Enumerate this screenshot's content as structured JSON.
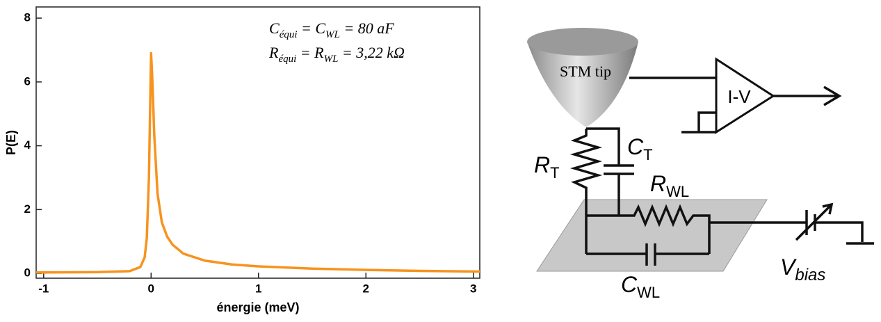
{
  "chart_data": {
    "type": "line",
    "x_label": "énergie (meV)",
    "y_label": "P(E)",
    "annotations": [
      [
        "C",
        "équi",
        " = C",
        "WL",
        " = 80 aF"
      ],
      [
        "R",
        "équi",
        " = R",
        "WL",
        " = 3,22 kΩ"
      ]
    ],
    "x": [
      -1.07,
      -1,
      -0.5,
      -0.2,
      -0.1,
      -0.06,
      -0.04,
      -0.02,
      -0.01,
      0,
      0.01,
      0.03,
      0.06,
      0.1,
      0.15,
      0.2,
      0.3,
      0.5,
      0.75,
      1,
      1.5,
      2,
      2.5,
      3,
      3.06
    ],
    "values": [
      0.03,
      0.03,
      0.04,
      0.07,
      0.2,
      0.5,
      1.1,
      3,
      5,
      6.9,
      6.2,
      4.3,
      2.5,
      1.6,
      1.15,
      0.9,
      0.62,
      0.4,
      0.28,
      0.22,
      0.15,
      0.11,
      0.08,
      0.06,
      0.06
    ],
    "color": "#f7931e",
    "xlim": [
      -1.07,
      3.06
    ],
    "ylim": [
      -0.15,
      8.35
    ],
    "xticks": [
      -1,
      0,
      1,
      2,
      3
    ],
    "yticks": [
      0,
      2,
      4,
      6,
      8
    ],
    "grid": false
  },
  "diagram": {
    "labels": [
      {
        "text": "STM tip"
      },
      {
        "text": "I-V"
      },
      {
        "text": "C",
        "sub": "T"
      },
      {
        "text": "R",
        "sub": "T"
      },
      {
        "text": "R",
        "sub": "WL"
      },
      {
        "text": "C",
        "sub": "WL"
      },
      {
        "text": "V",
        "sub": "bias"
      }
    ]
  }
}
